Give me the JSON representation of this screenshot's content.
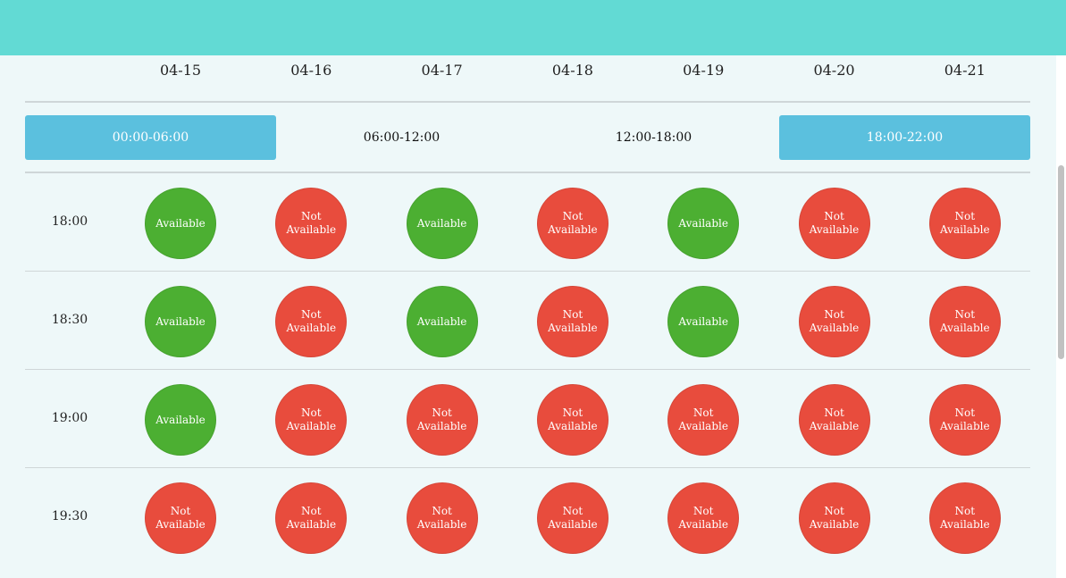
{
  "dates": [
    "04-15",
    "04-16",
    "04-17",
    "04-18",
    "04-19",
    "04-20",
    "04-21"
  ],
  "time_ranges": [
    {
      "label": "00:00-06:00",
      "active": true
    },
    {
      "label": "06:00-12:00",
      "active": false
    },
    {
      "label": "12:00-18:00",
      "active": false
    },
    {
      "label": "18:00-22:00",
      "active": true
    }
  ],
  "status_labels": {
    "available": "Available",
    "unavailable": "Not Available"
  },
  "colors": {
    "header": "#62dad4",
    "range_active": "#5bc0de",
    "available": "#4caf32",
    "unavailable": "#e84c3d"
  },
  "rows": [
    {
      "time": "18:00",
      "slots": [
        true,
        false,
        true,
        false,
        true,
        false,
        false
      ]
    },
    {
      "time": "18:30",
      "slots": [
        true,
        false,
        true,
        false,
        true,
        false,
        false
      ]
    },
    {
      "time": "19:00",
      "slots": [
        true,
        false,
        false,
        false,
        false,
        false,
        false
      ]
    },
    {
      "time": "19:30",
      "slots": [
        false,
        false,
        false,
        false,
        false,
        false,
        false
      ]
    }
  ]
}
